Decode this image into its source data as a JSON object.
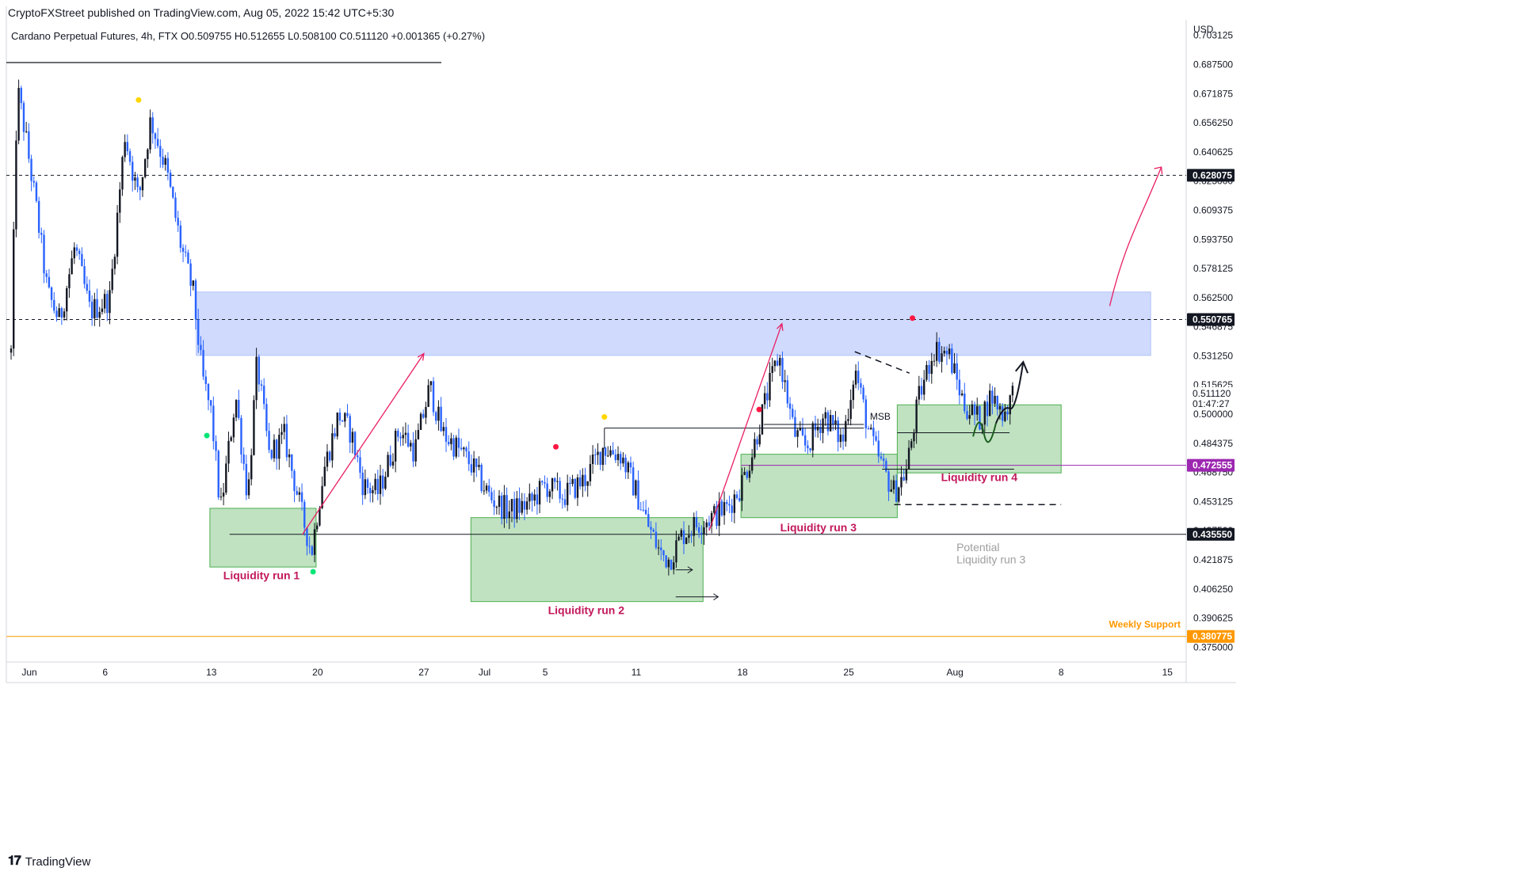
{
  "header": {
    "published": "CryptoFXStreet published on TradingView.com, Aug 05, 2022 15:42 UTC+5:30",
    "symbol": "Cardano Perpetual Futures, 4h, FTX",
    "open": "O0.509755",
    "high": "H0.512655",
    "low": "L0.508100",
    "close": "C0.511120",
    "change": "+0.001365 (+0.27%)"
  },
  "footer": {
    "brand": "TradingView"
  },
  "colors": {
    "up_candle": "#131722",
    "down_candle": "#2962ff",
    "zone_fill": "#cfdafd",
    "liquidity_fill": "#a5d6a7",
    "liquidity_label": "#c2185b",
    "arrow_pink": "#e91e63",
    "weekly_support": "#ff9800",
    "level_472_line": "#9c27b0"
  },
  "chart_data": {
    "type": "candlestick",
    "timeframe": "4h",
    "currency": "USD",
    "ylim": [
      0.3675,
      0.7115
    ],
    "y_ticks": [
      "0.703125",
      "0.687500",
      "0.671875",
      "0.656250",
      "0.640625",
      "0.625000",
      "0.609375",
      "0.593750",
      "0.578125",
      "0.562500",
      "0.546875",
      "0.531250",
      "0.515625",
      "0.500000",
      "0.484375",
      "0.468750",
      "0.453125",
      "0.437500",
      "0.421875",
      "0.406250",
      "0.390625",
      "0.375000"
    ],
    "x_ticks": [
      {
        "label": "Jun",
        "day": 0
      },
      {
        "label": "6",
        "day": 5
      },
      {
        "label": "13",
        "day": 12
      },
      {
        "label": "20",
        "day": 19
      },
      {
        "label": "27",
        "day": 26
      },
      {
        "label": "Jul",
        "day": 30
      },
      {
        "label": "5",
        "day": 34
      },
      {
        "label": "11",
        "day": 40
      },
      {
        "label": "18",
        "day": 47
      },
      {
        "label": "25",
        "day": 54
      },
      {
        "label": "Aug",
        "day": 61
      },
      {
        "label": "8",
        "day": 68
      },
      {
        "label": "15",
        "day": 75
      }
    ],
    "close_waypoints": [
      {
        "day": -1.2,
        "close": 0.533
      },
      {
        "day": -0.8,
        "close": 0.675
      },
      {
        "day": -0.3,
        "close": 0.652
      },
      {
        "day": 0.5,
        "close": 0.608
      },
      {
        "day": 1.2,
        "close": 0.565
      },
      {
        "day": 2.0,
        "close": 0.55
      },
      {
        "day": 3.0,
        "close": 0.59
      },
      {
        "day": 4.0,
        "close": 0.555
      },
      {
        "day": 5.3,
        "close": 0.562
      },
      {
        "day": 6.3,
        "close": 0.65
      },
      {
        "day": 7.2,
        "close": 0.615
      },
      {
        "day": 8.0,
        "close": 0.658
      },
      {
        "day": 9.0,
        "close": 0.632
      },
      {
        "day": 10.0,
        "close": 0.59
      },
      {
        "day": 10.8,
        "close": 0.565
      },
      {
        "day": 11.4,
        "close": 0.52
      },
      {
        "day": 12.0,
        "close": 0.5
      },
      {
        "day": 12.6,
        "close": 0.448
      },
      {
        "day": 13.6,
        "close": 0.51
      },
      {
        "day": 14.4,
        "close": 0.455
      },
      {
        "day": 15.0,
        "close": 0.528
      },
      {
        "day": 15.8,
        "close": 0.478
      },
      {
        "day": 16.8,
        "close": 0.488
      },
      {
        "day": 18.0,
        "close": 0.445
      },
      {
        "day": 18.6,
        "close": 0.426
      },
      {
        "day": 19.4,
        "close": 0.47
      },
      {
        "day": 20.4,
        "close": 0.5
      },
      {
        "day": 21.2,
        "close": 0.49
      },
      {
        "day": 22.0,
        "close": 0.462
      },
      {
        "day": 23.0,
        "close": 0.458
      },
      {
        "day": 24.4,
        "close": 0.492
      },
      {
        "day": 25.4,
        "close": 0.48
      },
      {
        "day": 26.4,
        "close": 0.515
      },
      {
        "day": 27.2,
        "close": 0.49
      },
      {
        "day": 28.2,
        "close": 0.482
      },
      {
        "day": 29.2,
        "close": 0.472
      },
      {
        "day": 30.4,
        "close": 0.455
      },
      {
        "day": 31.6,
        "close": 0.448
      },
      {
        "day": 33.0,
        "close": 0.452
      },
      {
        "day": 34.0,
        "close": 0.462
      },
      {
        "day": 35.2,
        "close": 0.456
      },
      {
        "day": 36.6,
        "close": 0.465
      },
      {
        "day": 37.8,
        "close": 0.482
      },
      {
        "day": 39.0,
        "close": 0.478
      },
      {
        "day": 40.0,
        "close": 0.458
      },
      {
        "day": 40.8,
        "close": 0.44
      },
      {
        "day": 41.6,
        "close": 0.425
      },
      {
        "day": 42.2,
        "close": 0.422
      },
      {
        "day": 43.0,
        "close": 0.435
      },
      {
        "day": 43.8,
        "close": 0.44
      },
      {
        "day": 45.0,
        "close": 0.445
      },
      {
        "day": 46.0,
        "close": 0.45
      },
      {
        "day": 46.8,
        "close": 0.46
      },
      {
        "day": 47.6,
        "close": 0.478
      },
      {
        "day": 48.6,
        "close": 0.51
      },
      {
        "day": 49.4,
        "close": 0.532
      },
      {
        "day": 50.4,
        "close": 0.49
      },
      {
        "day": 51.2,
        "close": 0.482
      },
      {
        "day": 52.4,
        "close": 0.5
      },
      {
        "day": 53.6,
        "close": 0.485
      },
      {
        "day": 54.4,
        "close": 0.525
      },
      {
        "day": 55.4,
        "close": 0.488
      },
      {
        "day": 56.4,
        "close": 0.468
      },
      {
        "day": 57.0,
        "close": 0.458
      },
      {
        "day": 57.8,
        "close": 0.47
      },
      {
        "day": 58.6,
        "close": 0.508
      },
      {
        "day": 59.6,
        "close": 0.535
      },
      {
        "day": 60.6,
        "close": 0.532
      },
      {
        "day": 61.6,
        "close": 0.505
      },
      {
        "day": 62.6,
        "close": 0.497
      },
      {
        "day": 63.4,
        "close": 0.51
      },
      {
        "day": 64.2,
        "close": 0.5
      },
      {
        "day": 64.8,
        "close": 0.511
      }
    ],
    "price_labels": [
      {
        "label": "0.628075",
        "price": 0.628075,
        "style": "dashed",
        "bg": "#131722"
      },
      {
        "label": "0.550765",
        "price": 0.550765,
        "style": "dashed",
        "bg": "#131722"
      },
      {
        "label": "0.511120",
        "price": 0.51112,
        "style": "none",
        "bg": "#ffffff"
      },
      {
        "label": "01:47:27",
        "price": 0.5055,
        "style": "none",
        "bg": "#ffffff"
      },
      {
        "label": "0.472555",
        "price": 0.472555,
        "style": "solid",
        "bg": "#9c27b0"
      },
      {
        "label": "0.435550",
        "price": 0.43555,
        "style": "solid",
        "bg": "#131722"
      },
      {
        "label": "0.380775",
        "price": 0.380775,
        "style": "solid",
        "bg": "#ff9800"
      }
    ],
    "supply_zone": {
      "x": [
        11.0,
        73.9
      ],
      "y": [
        0.5315,
        0.5655
      ]
    },
    "liquidity_zones": [
      {
        "label": "Liquidity run 1",
        "x": [
          11.9,
          18.9
        ],
        "y": [
          0.418,
          0.4495
        ],
        "label_day": 15.3,
        "label_price": 0.4115
      },
      {
        "label": "Liquidity run 2",
        "x": [
          29.1,
          44.4
        ],
        "y": [
          0.3995,
          0.4445
        ],
        "label_day": 36.7,
        "label_price": 0.3928
      },
      {
        "label": "Liquidity run 3",
        "x": [
          46.9,
          57.2
        ],
        "y": [
          0.4445,
          0.4785
        ],
        "label_day": 52.0,
        "label_price": 0.4372
      },
      {
        "label": "Liquidity run 4",
        "x": [
          57.2,
          68.0
        ],
        "y": [
          0.4685,
          0.505
        ],
        "label_day": 62.6,
        "label_price": 0.4641
      }
    ],
    "annotations": [
      {
        "text": "MSB",
        "day": 55.4,
        "price": 0.497
      },
      {
        "text": "Potential",
        "day": 61.1,
        "price": 0.4265
      },
      {
        "text": "Liquidity run 3",
        "day": 61.1,
        "price": 0.42
      },
      {
        "text": "Weekly Support",
        "day": 72.2,
        "price": 0.3855
      }
    ],
    "dots": [
      {
        "day": 7.2,
        "price": 0.6685,
        "color": "#ffd600"
      },
      {
        "day": 11.7,
        "price": 0.4885,
        "color": "#00e676"
      },
      {
        "day": 18.7,
        "price": 0.4155,
        "color": "#00e676"
      },
      {
        "day": 34.7,
        "price": 0.4825,
        "color": "#ff1744"
      },
      {
        "day": 37.9,
        "price": 0.4985,
        "color": "#ffd600"
      },
      {
        "day": 48.1,
        "price": 0.5025,
        "color": "#ff1744"
      },
      {
        "day": 58.2,
        "price": 0.5515,
        "color": "#ff1744"
      }
    ],
    "pink_arrows": [
      {
        "from": [
          18.0,
          0.4355
        ],
        "to": [
          26.0,
          0.5325
        ]
      },
      {
        "from": [
          44.8,
          0.4375
        ],
        "to": [
          49.6,
          0.5485
        ]
      }
    ],
    "projection_arrow": {
      "from": [
        71.2,
        0.558
      ],
      "c1": [
        72.2,
        0.592
      ],
      "c2": [
        73.2,
        0.604
      ],
      "to": [
        74.6,
        0.6325
      ]
    }
  }
}
